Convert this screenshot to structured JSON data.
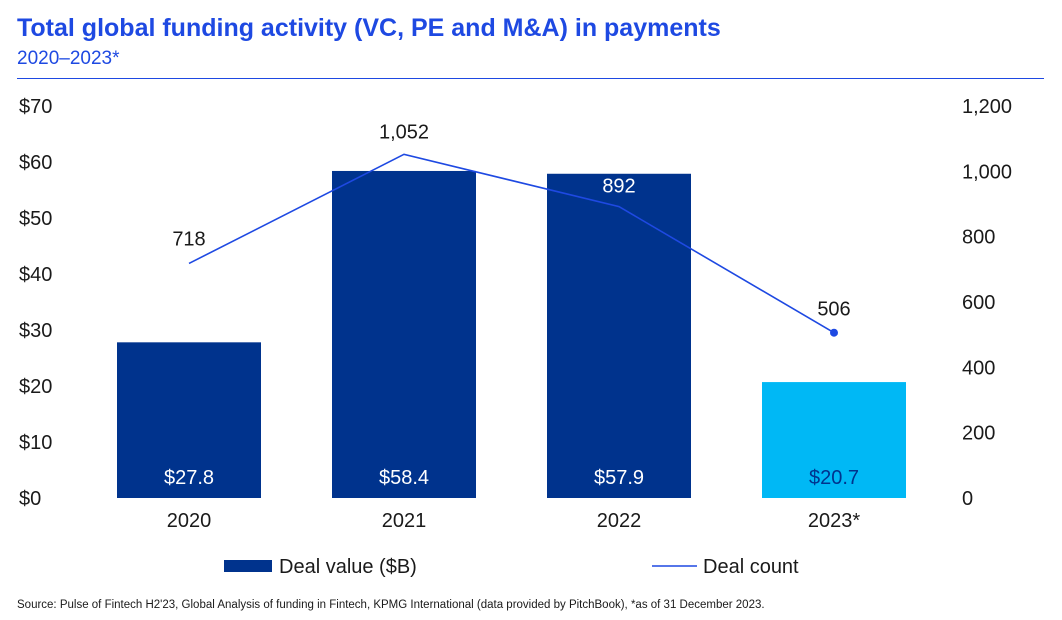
{
  "header": {
    "title": "Total global funding activity (VC, PE and M&A) in payments",
    "subtitle": "2020–2023*"
  },
  "source": "Source: Pulse of Fintech H2'23, Global Analysis of funding in Fintech, KPMG International (data provided by PitchBook), *as of 31 December 2023.",
  "colors": {
    "bar": "#00338d",
    "bar_highlight": "#00b8f5",
    "line": "#1e49e2",
    "text": "#1a1a1a",
    "accent": "#1e49e2"
  },
  "chart_data": {
    "type": "bar",
    "categories": [
      "2020",
      "2021",
      "2022",
      "2023*"
    ],
    "series": [
      {
        "name": "Deal value ($B)",
        "type": "bar",
        "axis": "left",
        "values": [
          27.8,
          58.4,
          57.9,
          20.7
        ],
        "labels": [
          "$27.8",
          "$58.4",
          "$57.9",
          "$20.7"
        ]
      },
      {
        "name": "Deal count",
        "type": "line",
        "axis": "right",
        "values": [
          718,
          1052,
          892,
          506
        ],
        "labels": [
          "718",
          "1,052",
          "892",
          "506"
        ]
      }
    ],
    "y_left": {
      "ticks": [
        "$0",
        "$10",
        "$20",
        "$30",
        "$40",
        "$50",
        "$60",
        "$70"
      ],
      "lim": [
        0,
        70
      ]
    },
    "y_right": {
      "ticks": [
        "0",
        "200",
        "400",
        "600",
        "800",
        "1,000",
        "1,200"
      ],
      "lim": [
        0,
        1200
      ]
    },
    "grid": false,
    "legend": "bottom"
  }
}
